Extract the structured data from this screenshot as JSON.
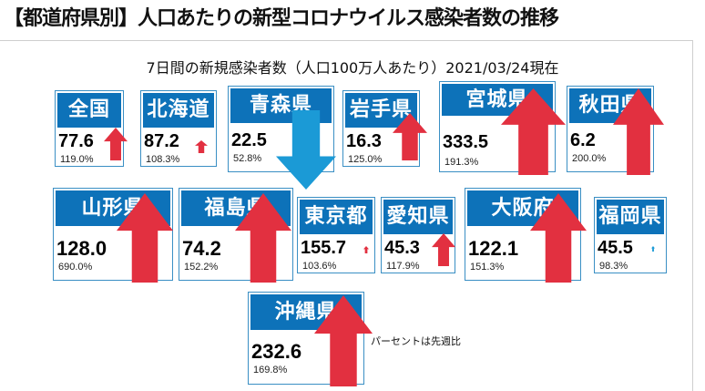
{
  "title": "【都道府県別】人口あたりの新型コロナウイルス感染者数の推移",
  "subtitle": "7日間の新規感染者数（人口100万人あたり）2021/03/24現在",
  "note": "パーセントは先週比",
  "colors": {
    "header_blue": "#0d72b9",
    "arrow_red": "#e23040",
    "arrow_blue": "#1b9ad6"
  },
  "prefectures": [
    {
      "name": "全国",
      "value": "77.6",
      "percent": "119.0%",
      "trend": "up"
    },
    {
      "name": "北海道",
      "value": "87.2",
      "percent": "108.3%",
      "trend": "up"
    },
    {
      "name": "青森県",
      "value": "22.5",
      "percent": "52.8%",
      "trend": "down"
    },
    {
      "name": "岩手県",
      "value": "16.3",
      "percent": "125.0%",
      "trend": "up"
    },
    {
      "name": "宮城県",
      "value": "333.5",
      "percent": "191.3%",
      "trend": "up"
    },
    {
      "name": "秋田県",
      "value": "6.2",
      "percent": "200.0%",
      "trend": "up"
    },
    {
      "name": "山形県",
      "value": "128.0",
      "percent": "690.0%",
      "trend": "up"
    },
    {
      "name": "福島県",
      "value": "74.2",
      "percent": "152.2%",
      "trend": "up"
    },
    {
      "name": "東京都",
      "value": "155.7",
      "percent": "103.6%",
      "trend": "up"
    },
    {
      "name": "愛知県",
      "value": "45.3",
      "percent": "117.9%",
      "trend": "up"
    },
    {
      "name": "大阪府",
      "value": "122.1",
      "percent": "151.3%",
      "trend": "up"
    },
    {
      "name": "福岡県",
      "value": "45.5",
      "percent": "98.3%",
      "trend": "down"
    },
    {
      "name": "沖縄県",
      "value": "232.6",
      "percent": "169.8%",
      "trend": "up"
    }
  ]
}
